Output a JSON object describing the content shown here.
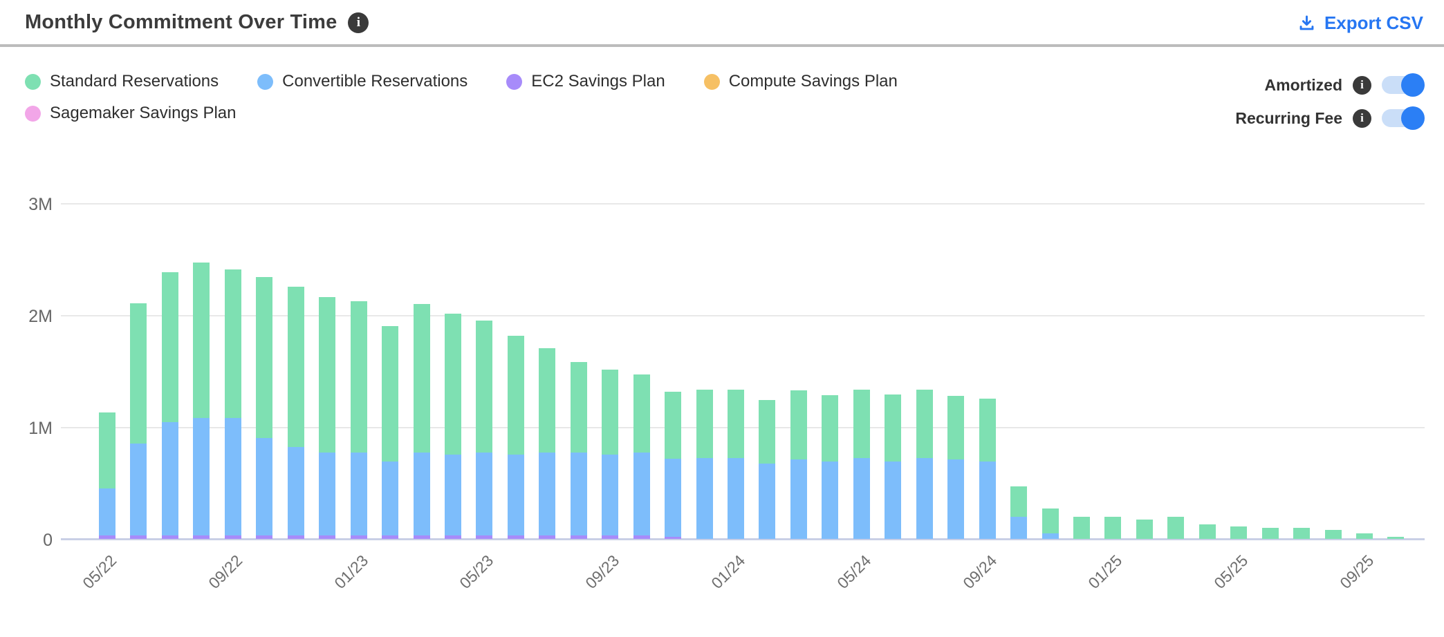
{
  "header": {
    "title": "Monthly Commitment Over Time",
    "title_info_icon": "i",
    "export_label": "Export CSV"
  },
  "toggles": [
    {
      "label": "Amortized",
      "state_on": true
    },
    {
      "label": "Recurring Fee",
      "state_on": true
    }
  ],
  "colors": {
    "accent_blue": "#2b7ff5",
    "export_link": "#2676f2",
    "toggle_track": "#cadef8",
    "standard": "#7ee0b2",
    "convertible": "#7dbdfb",
    "ec2": "#a78bfa",
    "compute": "#f6c064",
    "sagemaker": "#f2a6e8",
    "gridline": "#e8e8e8",
    "baseline": "#c9cfe6"
  },
  "chart_data": {
    "type": "bar",
    "stacked": true,
    "title": "Monthly Commitment Over Time",
    "unit": "M (millions USD)",
    "ylim": [
      0,
      3
    ],
    "y_tick_labels": [
      "0",
      "1M",
      "2M",
      "3M"
    ],
    "grid": true,
    "legend_position": "top-left",
    "categories": [
      "05/22",
      "06/22",
      "07/22",
      "08/22",
      "09/22",
      "10/22",
      "11/22",
      "12/22",
      "01/23",
      "02/23",
      "03/23",
      "04/23",
      "05/23",
      "06/23",
      "07/23",
      "08/23",
      "09/23",
      "10/23",
      "11/23",
      "12/23",
      "01/24",
      "02/24",
      "03/24",
      "04/24",
      "05/24",
      "06/24",
      "07/24",
      "08/24",
      "09/24",
      "10/24",
      "11/24",
      "12/24",
      "01/25",
      "02/25",
      "03/25",
      "04/25",
      "05/25",
      "06/25",
      "07/25",
      "08/25",
      "09/25",
      "10/25"
    ],
    "x_tick_shown_every": 4,
    "series": [
      {
        "name": "Standard Reservations",
        "color": "#7ee0b2",
        "values": [
          0.68,
          1.25,
          1.34,
          1.39,
          1.33,
          1.44,
          1.43,
          1.39,
          1.35,
          1.21,
          1.33,
          1.26,
          1.18,
          1.06,
          0.93,
          0.81,
          0.76,
          0.7,
          0.6,
          0.61,
          0.61,
          0.57,
          0.62,
          0.59,
          0.61,
          0.6,
          0.61,
          0.57,
          0.56,
          0.27,
          0.22,
          0.2,
          0.2,
          0.17,
          0.2,
          0.13,
          0.11,
          0.1,
          0.1,
          0.08,
          0.05,
          0.02
        ]
      },
      {
        "name": "Convertible Reservations",
        "color": "#7dbdfb",
        "values": [
          0.42,
          0.82,
          1.01,
          1.05,
          1.05,
          0.87,
          0.79,
          0.74,
          0.74,
          0.66,
          0.74,
          0.72,
          0.74,
          0.72,
          0.74,
          0.74,
          0.72,
          0.74,
          0.7,
          0.72,
          0.72,
          0.67,
          0.71,
          0.69,
          0.72,
          0.69,
          0.72,
          0.71,
          0.69,
          0.2,
          0.05,
          0,
          0,
          0,
          0,
          0,
          0,
          0,
          0,
          0,
          0,
          0
        ]
      },
      {
        "name": "EC2 Savings Plan",
        "color": "#a78bfa",
        "values": [
          0.03,
          0.03,
          0.03,
          0.03,
          0.03,
          0.03,
          0.03,
          0.03,
          0.03,
          0.03,
          0.03,
          0.03,
          0.03,
          0.03,
          0.03,
          0.03,
          0.03,
          0.03,
          0.02,
          0,
          0,
          0,
          0,
          0,
          0,
          0,
          0,
          0,
          0,
          0,
          0,
          0,
          0,
          0,
          0,
          0,
          0,
          0,
          0,
          0,
          0,
          0
        ]
      },
      {
        "name": "Compute Savings Plan",
        "color": "#f6c064",
        "values": [
          0,
          0,
          0,
          0,
          0,
          0,
          0,
          0,
          0,
          0,
          0,
          0,
          0,
          0,
          0,
          0,
          0,
          0,
          0,
          0,
          0,
          0,
          0,
          0,
          0,
          0,
          0,
          0,
          0,
          0,
          0,
          0,
          0,
          0,
          0,
          0,
          0,
          0,
          0,
          0,
          0,
          0
        ]
      },
      {
        "name": "Sagemaker Savings Plan",
        "color": "#f2a6e8",
        "values": [
          0,
          0,
          0,
          0,
          0,
          0,
          0,
          0,
          0,
          0,
          0,
          0,
          0,
          0,
          0,
          0,
          0,
          0,
          0,
          0,
          0,
          0,
          0,
          0,
          0,
          0,
          0,
          0,
          0,
          0,
          0,
          0,
          0,
          0,
          0,
          0,
          0,
          0,
          0,
          0,
          0,
          0
        ]
      }
    ]
  }
}
